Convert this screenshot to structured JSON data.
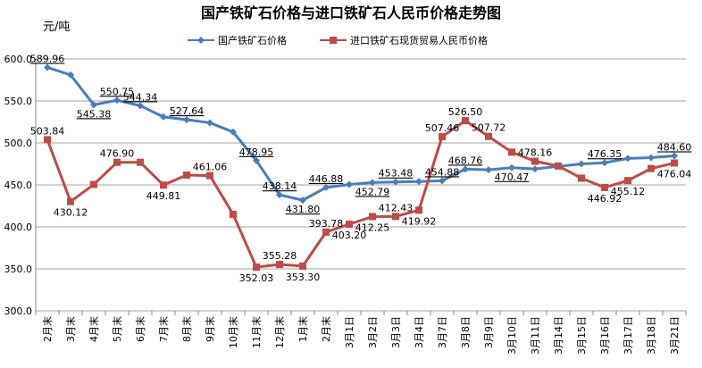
{
  "chart_data": {
    "type": "line",
    "title": "国产铁矿石价格与进口铁矿石人民币价格走势图",
    "ylabel": "元/吨",
    "xlabel": "",
    "ylim": [
      300,
      600
    ],
    "yticks": [
      "300.0",
      "350.0",
      "400.0",
      "450.0",
      "500.0",
      "550.0",
      "600.0"
    ],
    "grid": true,
    "legend_position": "top",
    "categories": [
      "2月末",
      "3月末",
      "4月末",
      "5月末",
      "6月末",
      "7月末",
      "8月末",
      "9月末",
      "10月末",
      "11月末",
      "12月末",
      "1月末",
      "2月末",
      "3月1日",
      "3月2日",
      "3月3日",
      "3月4日",
      "3月7日",
      "3月8日",
      "3月9日",
      "3月10日",
      "3月11日",
      "3月14日",
      "3月15日",
      "3月16日",
      "3月17日",
      "3月18日",
      "3月21日"
    ],
    "series": [
      {
        "name": "国产铁矿石价格",
        "color": "#4a7ebb",
        "marker": "diamond",
        "values": [
          589.96,
          581.0,
          545.38,
          550.75,
          544.34,
          531.0,
          527.64,
          524.0,
          513.0,
          478.95,
          438.14,
          431.8,
          446.88,
          450.5,
          452.79,
          453.48,
          454.0,
          454.88,
          468.76,
          468.0,
          470.47,
          469.0,
          472.0,
          475.0,
          476.35,
          481.5,
          482.5,
          484.6
        ],
        "labels": [
          "589.96",
          "",
          "545.38",
          "550.75",
          "544.34",
          "",
          "527.64",
          "",
          "",
          "478.95",
          "438.14",
          "431.80",
          "446.88",
          "",
          "452.79",
          "453.48",
          "",
          "454.88",
          "468.76",
          "",
          "470.47",
          "",
          "",
          "",
          "476.35",
          "",
          "",
          "484.60"
        ]
      },
      {
        "name": "进口铁矿石现货贸易人民币价格",
        "color": "#be4b48",
        "marker": "square",
        "values": [
          503.84,
          430.12,
          450.5,
          476.9,
          476.9,
          449.81,
          461.7,
          461.06,
          415.0,
          352.03,
          355.28,
          353.3,
          393.78,
          403.2,
          412.25,
          412.43,
          419.92,
          507.46,
          526.5,
          507.72,
          489.0,
          478.16,
          472.5,
          458.0,
          446.92,
          455.12,
          469.5,
          476.04
        ],
        "labels": [
          "503.84",
          "430.12",
          "",
          "476.90",
          "",
          "449.81",
          "",
          "461.06",
          "",
          "352.03",
          "355.28",
          "353.30",
          "393.78",
          "403.20",
          "412.25",
          "412.43",
          "419.92",
          "507.46",
          "526.50",
          "507.72",
          "",
          "478.16",
          "",
          "",
          "446.92",
          "455.12",
          "",
          "476.04"
        ]
      }
    ]
  }
}
